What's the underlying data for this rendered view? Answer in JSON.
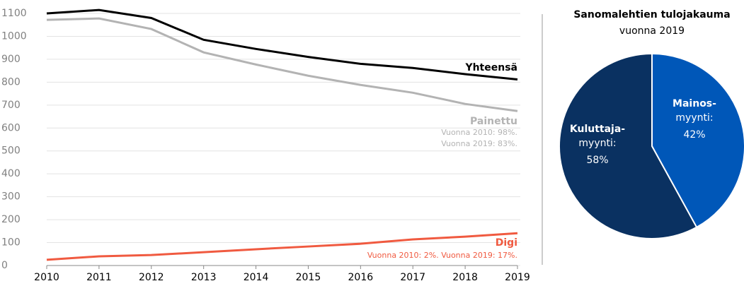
{
  "chart_data": [
    {
      "type": "line",
      "x": [
        2010,
        2011,
        2012,
        2013,
        2014,
        2015,
        2016,
        2017,
        2018,
        2019
      ],
      "xlim": [
        2010,
        2019
      ],
      "xticks": [
        2010,
        2011,
        2012,
        2013,
        2014,
        2015,
        2016,
        2017,
        2018,
        2019
      ],
      "ylim": [
        0,
        1100
      ],
      "yticks": [
        0,
        100,
        200,
        300,
        400,
        500,
        600,
        700,
        800,
        900,
        1000,
        1100
      ],
      "grid": true,
      "series": [
        {
          "name": "Yhteensä",
          "color": "#000000",
          "values": [
            1100,
            1115,
            1080,
            985,
            945,
            910,
            880,
            862,
            835,
            812
          ],
          "notes": []
        },
        {
          "name": "Painettu",
          "color": "#b3b3b3",
          "values": [
            1072,
            1078,
            1032,
            930,
            877,
            828,
            788,
            754,
            705,
            674
          ],
          "notes": [
            "Vuonna 2010: 98%.",
            "Vuonna 2019: 83%."
          ]
        },
        {
          "name": "Digi",
          "color": "#f05a40",
          "values": [
            25,
            40,
            46,
            58,
            71,
            83,
            95,
            114,
            126,
            141
          ],
          "notes": [
            "Vuonna 2010: 2%. Vuonna 2019: 17%."
          ]
        }
      ]
    },
    {
      "type": "pie",
      "title": "Sanomalehtien tulojakauma",
      "subtitle": "vuonna 2019",
      "categories": [
        [
          "Mainos-",
          "myynti:"
        ],
        [
          "Kuluttaja-",
          "myynti:"
        ]
      ],
      "values": [
        42,
        58
      ],
      "value_labels": [
        "42%",
        "58%"
      ],
      "colors": [
        "#0057b8",
        "#0a3161"
      ]
    }
  ]
}
